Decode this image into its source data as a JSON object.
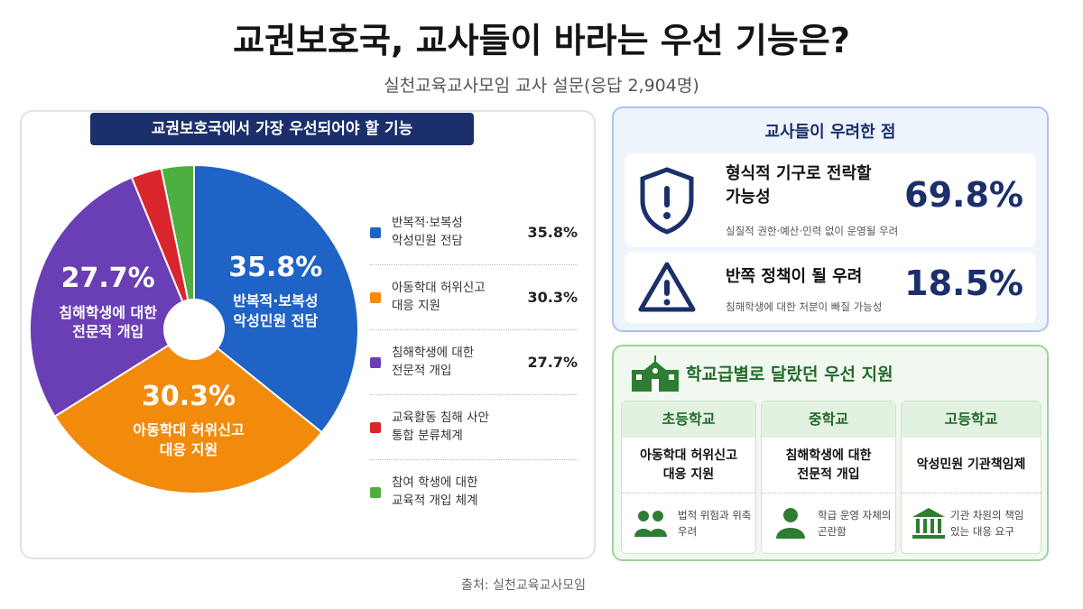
{
  "header": {
    "title": "교권보호국, 교사들이 바라는 우선 기능은?",
    "subtitle": "실천교육교사모임 교사 설문(응답 2,904명)"
  },
  "chart_data": {
    "type": "pie",
    "title": "교권보호국에서 가장 우선되어야 할 기능",
    "categories": [
      "반복적·보복성 악성민원 전담",
      "아동학대 허위신고 대응 지원",
      "침해학생에 대한 전문적 개입",
      "교육활동 침해 사안 통합 분류체계",
      "참여 학생에 대한 교육적 개입 체계"
    ],
    "values": [
      35.8,
      30.3,
      27.7,
      3.0,
      3.2
    ],
    "value_labels": [
      "35.8%",
      "30.3%",
      "27.7%",
      null,
      null
    ],
    "colors": [
      "#1f63c6",
      "#f28a0c",
      "#6a3fb5",
      "#d9262c",
      "#4caf3f"
    ]
  },
  "concerns": {
    "title": "교사들이 우려한 점",
    "items": [
      {
        "title": "형식적 기구로 전락할 가능성",
        "note": "실질적 권한·예산·인력 없이 운영될 우려",
        "value": "69.8%"
      },
      {
        "title": "반쪽 정책이 될 우려",
        "note": "침해학생에 대한 처분이 빠질 가능성",
        "value": "18.5%"
      }
    ]
  },
  "levels": {
    "title": "학교급별로 달랐던 우선 지원",
    "columns": [
      {
        "name": "초등학교",
        "priority": "아동학대 허위신고 대응 지원",
        "note": "법적 위험과 위축 우려"
      },
      {
        "name": "중학교",
        "priority": "침해학생에 대한 전문적 개입",
        "note": "학급 운영 자체의 곤란함"
      },
      {
        "name": "고등학교",
        "priority": "악성민원 기관책임제",
        "note": "기관 차원의 책임 있는 대응 요구"
      }
    ]
  },
  "footer": {
    "source": "출처: 실천교육교사모임"
  }
}
